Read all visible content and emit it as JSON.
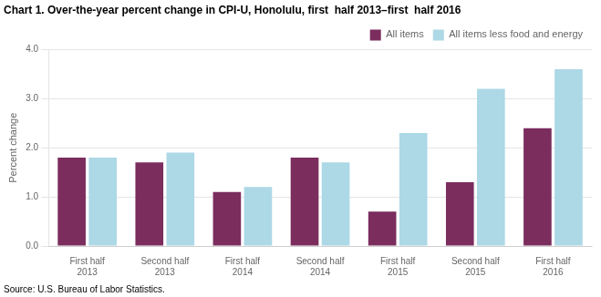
{
  "chart_data": {
    "type": "bar",
    "title": "Chart 1. Over-the-year percent change in CPI-U, Honolulu, first  half 2013–first  half 2016",
    "y_label": "Percent change",
    "annotations": [
      "Source: U.S. Bureau of Labor Statistics."
    ],
    "categories": [
      "First half 2013",
      "Second half 2013",
      "First half 2014",
      "Second half 2014",
      "First half 2015",
      "Second half 2015",
      "First half 2016"
    ],
    "series": [
      {
        "name": "All items",
        "color": "#7B2D5E",
        "values": [
          1.8,
          1.7,
          1.1,
          1.8,
          0.7,
          1.3,
          2.4
        ]
      },
      {
        "name": "All items less food and energy",
        "color": "#ADD8E6",
        "values": [
          1.8,
          1.9,
          1.2,
          1.7,
          2.3,
          3.2,
          3.6
        ]
      }
    ],
    "ylim": [
      0.0,
      4.0
    ],
    "yticks": [
      {
        "value": 0.0,
        "label": "0.0"
      },
      {
        "value": 1.0,
        "label": "1.0"
      },
      {
        "value": 2.0,
        "label": "2.0"
      },
      {
        "value": 3.0,
        "label": "3.0"
      },
      {
        "value": 4.0,
        "label": "4.0"
      }
    ],
    "grid": true,
    "legend": "upper right"
  }
}
